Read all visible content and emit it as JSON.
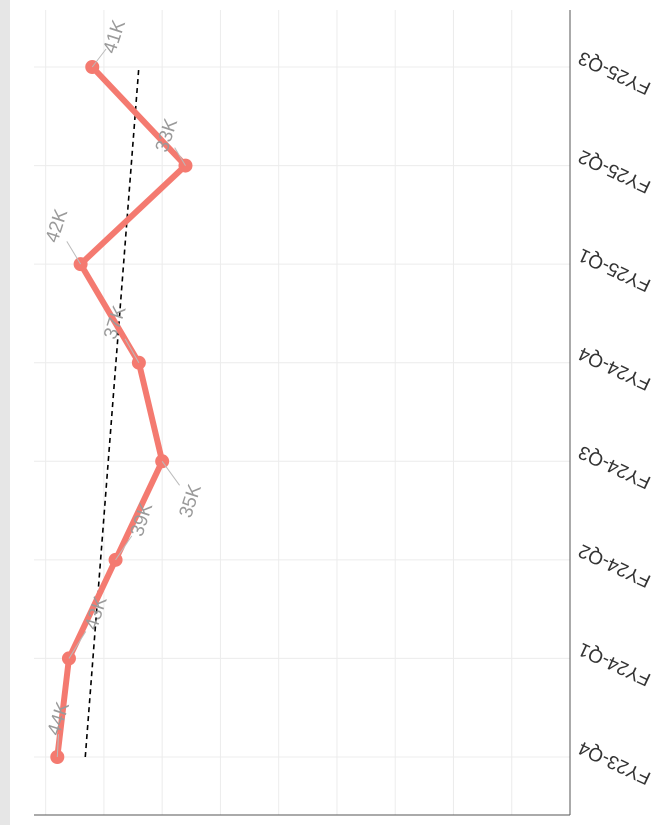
{
  "chart_data": {
    "type": "line",
    "orientation": "rotated",
    "categories": [
      "FY23-Q4",
      "FY24-Q1",
      "FY24-Q2",
      "FY24-Q3",
      "FY24-Q4",
      "FY25-Q1",
      "FY25-Q2",
      "FY25-Q3"
    ],
    "values": [
      44000,
      43000,
      39000,
      35000,
      37000,
      42000,
      33000,
      41000
    ],
    "value_labels": [
      "44K",
      "43K",
      "39K",
      "35K",
      "37K",
      "42K",
      "33K",
      "41K"
    ],
    "color": "#f47a70",
    "trendline": [
      41600,
      37000
    ],
    "ylim": [
      0,
      46000
    ],
    "yticks": [
      0,
      5000,
      10000,
      15000,
      20000,
      25000,
      30000,
      35000,
      40000,
      45000
    ],
    "grid": true
  }
}
